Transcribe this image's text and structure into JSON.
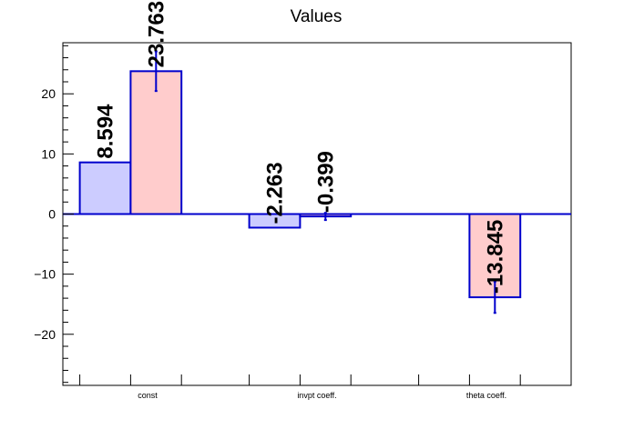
{
  "chart_data": {
    "type": "bar",
    "title": "Values",
    "xlabel": "",
    "ylabel": "",
    "categories": [
      "const",
      "invpt coeff.",
      "theta coeff."
    ],
    "ylim": [
      -28.5,
      28.5
    ],
    "yticks": [
      -20,
      -10,
      0,
      10,
      20
    ],
    "grid": false,
    "series": [
      {
        "values": [
          8.594,
          -2.263,
          null
        ],
        "value_labels": [
          "8.594",
          "-2.263",
          ""
        ],
        "errors": [
          null,
          null,
          null
        ],
        "fill": "#ccccff",
        "stroke": "#0000cc"
      },
      {
        "values": [
          23.763,
          -0.399,
          -13.845
        ],
        "value_labels": [
          "23.763",
          "-0.399",
          "-13.845"
        ],
        "errors": [
          3.3,
          0.6,
          2.6
        ],
        "fill": "#ffcccc",
        "stroke": "#0000cc"
      }
    ]
  }
}
